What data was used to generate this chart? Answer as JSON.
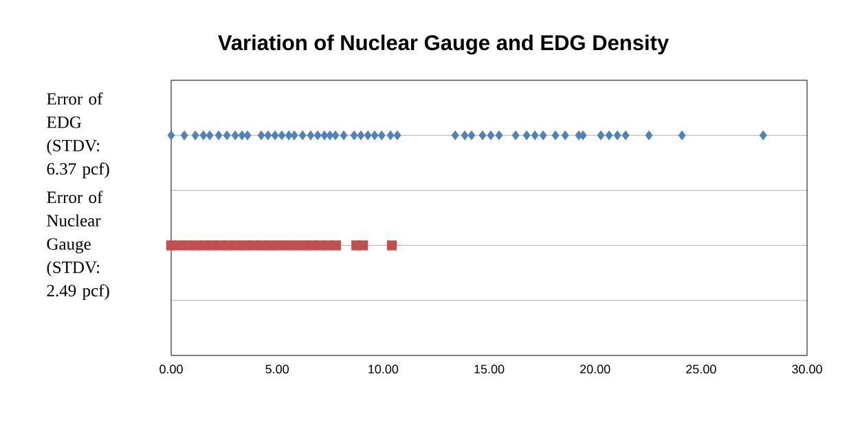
{
  "chart_data": {
    "type": "scatter",
    "title": "Variation of Nuclear Gauge and EDG Density",
    "orientation": "horizontal",
    "categories": [
      "Error of EDG (STDV: 6.37 pcf)",
      null,
      "Error of Nuclear Gauge (STDV: 2.49 pcf)",
      null
    ],
    "xlim": [
      0,
      30
    ],
    "xticks": [
      {
        "value": 0,
        "label": "0.00"
      },
      {
        "value": 5,
        "label": "5.00"
      },
      {
        "value": 10,
        "label": "10.00"
      },
      {
        "value": 15,
        "label": "15.00"
      },
      {
        "value": 20,
        "label": "20.00"
      },
      {
        "value": 25,
        "label": "25.00"
      },
      {
        "value": 30,
        "label": "30.00"
      }
    ],
    "grid": "y",
    "series": [
      {
        "color": "#4f81bd",
        "marker": "diamond",
        "x": [
          "Error of EDG (STDV: 6.37 pcf)",
          "Error of EDG (STDV: 6.37 pcf)",
          "Error of EDG (STDV: 6.37 pcf)",
          "Error of EDG (STDV: 6.37 pcf)",
          "Error of EDG (STDV: 6.37 pcf)",
          "Error of EDG (STDV: 6.37 pcf)",
          "Error of EDG (STDV: 6.37 pcf)",
          "Error of EDG (STDV: 6.37 pcf)",
          "Error of EDG (STDV: 6.37 pcf)",
          "Error of EDG (STDV: 6.37 pcf)",
          "Error of EDG (STDV: 6.37 pcf)",
          "Error of EDG (STDV: 6.37 pcf)",
          "Error of EDG (STDV: 6.37 pcf)",
          "Error of EDG (STDV: 6.37 pcf)",
          "Error of EDG (STDV: 6.37 pcf)",
          "Error of EDG (STDV: 6.37 pcf)",
          "Error of EDG (STDV: 6.37 pcf)",
          "Error of EDG (STDV: 6.37 pcf)",
          "Error of EDG (STDV: 6.37 pcf)",
          "Error of EDG (STDV: 6.37 pcf)",
          "Error of EDG (STDV: 6.37 pcf)",
          "Error of EDG (STDV: 6.37 pcf)",
          "Error of EDG (STDV: 6.37 pcf)",
          "Error of EDG (STDV: 6.37 pcf)",
          "Error of EDG (STDV: 6.37 pcf)",
          "Error of EDG (STDV: 6.37 pcf)",
          "Error of EDG (STDV: 6.37 pcf)",
          "Error of EDG (STDV: 6.37 pcf)",
          "Error of EDG (STDV: 6.37 pcf)",
          "Error of EDG (STDV: 6.37 pcf)",
          "Error of EDG (STDV: 6.37 pcf)",
          "Error of EDG (STDV: 6.37 pcf)",
          "Error of EDG (STDV: 6.37 pcf)",
          "Error of EDG (STDV: 6.37 pcf)",
          "Error of EDG (STDV: 6.37 pcf)",
          "Error of EDG (STDV: 6.37 pcf)",
          "Error of EDG (STDV: 6.37 pcf)",
          "Error of EDG (STDV: 6.37 pcf)",
          "Error of EDG (STDV: 6.37 pcf)",
          "Error of EDG (STDV: 6.37 pcf)",
          "Error of EDG (STDV: 6.37 pcf)",
          "Error of EDG (STDV: 6.37 pcf)",
          "Error of EDG (STDV: 6.37 pcf)",
          "Error of EDG (STDV: 6.37 pcf)",
          "Error of EDG (STDV: 6.37 pcf)",
          "Error of EDG (STDV: 6.37 pcf)",
          "Error of EDG (STDV: 6.37 pcf)",
          "Error of EDG (STDV: 6.37 pcf)",
          "Error of EDG (STDV: 6.37 pcf)",
          "Error of EDG (STDV: 6.37 pcf)",
          "Error of EDG (STDV: 6.37 pcf)"
        ],
        "values": [
          0.0,
          0.62,
          1.14,
          1.52,
          1.82,
          2.24,
          2.63,
          3.02,
          3.34,
          3.6,
          4.25,
          4.57,
          4.9,
          5.22,
          5.55,
          5.81,
          6.2,
          6.58,
          6.91,
          7.23,
          7.49,
          7.75,
          8.14,
          8.63,
          8.95,
          9.28,
          9.6,
          9.93,
          10.35,
          10.67,
          13.4,
          13.85,
          14.17,
          14.69,
          15.08,
          15.47,
          16.25,
          16.77,
          17.16,
          17.55,
          18.13,
          18.59,
          19.23,
          19.43,
          20.27,
          20.66,
          21.05,
          21.44,
          22.54,
          24.1,
          27.93
        ]
      },
      {
        "color": "#c0504d",
        "marker": "square",
        "x": [
          "Error of Nuclear Gauge (STDV: 2.49 pcf)",
          "Error of Nuclear Gauge (STDV: 2.49 pcf)",
          "Error of Nuclear Gauge (STDV: 2.49 pcf)",
          "Error of Nuclear Gauge (STDV: 2.49 pcf)",
          "Error of Nuclear Gauge (STDV: 2.49 pcf)",
          "Error of Nuclear Gauge (STDV: 2.49 pcf)",
          "Error of Nuclear Gauge (STDV: 2.49 pcf)",
          "Error of Nuclear Gauge (STDV: 2.49 pcf)",
          "Error of Nuclear Gauge (STDV: 2.49 pcf)",
          "Error of Nuclear Gauge (STDV: 2.49 pcf)",
          "Error of Nuclear Gauge (STDV: 2.49 pcf)",
          "Error of Nuclear Gauge (STDV: 2.49 pcf)",
          "Error of Nuclear Gauge (STDV: 2.49 pcf)",
          "Error of Nuclear Gauge (STDV: 2.49 pcf)",
          "Error of Nuclear Gauge (STDV: 2.49 pcf)",
          "Error of Nuclear Gauge (STDV: 2.49 pcf)",
          "Error of Nuclear Gauge (STDV: 2.49 pcf)",
          "Error of Nuclear Gauge (STDV: 2.49 pcf)",
          "Error of Nuclear Gauge (STDV: 2.49 pcf)",
          "Error of Nuclear Gauge (STDV: 2.49 pcf)",
          "Error of Nuclear Gauge (STDV: 2.49 pcf)",
          "Error of Nuclear Gauge (STDV: 2.49 pcf)",
          "Error of Nuclear Gauge (STDV: 2.49 pcf)",
          "Error of Nuclear Gauge (STDV: 2.49 pcf)"
        ],
        "values": [
          0.0,
          0.39,
          0.78,
          1.17,
          1.56,
          1.95,
          2.34,
          2.72,
          3.11,
          3.5,
          3.89,
          4.28,
          4.67,
          5.06,
          5.45,
          5.84,
          6.23,
          6.62,
          7.01,
          7.4,
          7.78,
          8.73,
          9.05,
          10.41
        ]
      }
    ]
  }
}
